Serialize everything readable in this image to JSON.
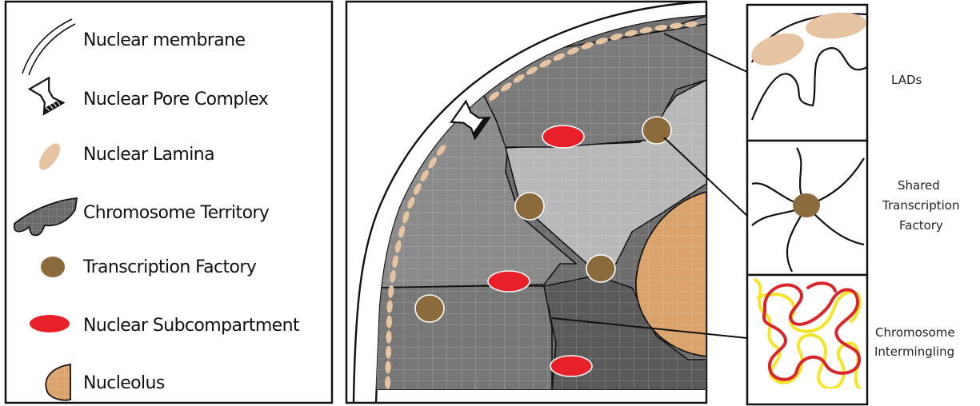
{
  "legend": {
    "items": [
      {
        "key": "membrane",
        "label": "Nuclear membrane"
      },
      {
        "key": "pore",
        "label": "Nuclear Pore Complex"
      },
      {
        "key": "lamina",
        "label": "Nuclear Lamina"
      },
      {
        "key": "territory",
        "label": "Chromosome Territory"
      },
      {
        "key": "factory",
        "label": "Transcription Factory"
      },
      {
        "key": "subcompartment",
        "label": "Nuclear Subcompartment"
      },
      {
        "key": "nucleolus",
        "label": "Nucleolus"
      }
    ]
  },
  "panels": {
    "lads": {
      "label_lines": [
        "LADs"
      ]
    },
    "shared": {
      "label_lines": [
        "Shared",
        "Transcription",
        "Factory"
      ]
    },
    "intermingling": {
      "label_lines": [
        "Chromosome",
        "Intermingling"
      ]
    }
  },
  "colors": {
    "lamina": "#e6c3a1",
    "factory": "#8b6a3c",
    "subcompartment": "#e8202a",
    "nucleolus": "#d9a36b",
    "territory_dark": "#6b6b6b",
    "territory_mid": "#8a8a8a",
    "territory_light": "#b9b9b9",
    "chrom_red": "#d8262a",
    "chrom_yellow": "#f4e42a"
  }
}
